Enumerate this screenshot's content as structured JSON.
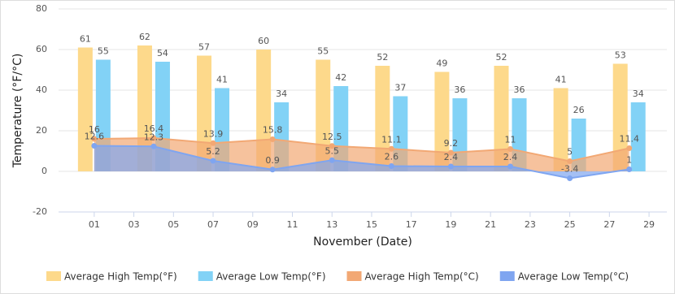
{
  "chart_data": {
    "type": "bar",
    "x_label": "November (Date)",
    "y_label": "Temperature (°F/°C)",
    "xlim": [
      -0.8,
      29.9
    ],
    "xticks": [
      {
        "value": 1,
        "label": "01"
      },
      {
        "value": 3,
        "label": "03"
      },
      {
        "value": 5,
        "label": "05"
      },
      {
        "value": 7,
        "label": "07"
      },
      {
        "value": 9,
        "label": "09"
      },
      11,
      13,
      15,
      17,
      19,
      21,
      23,
      25,
      27,
      29
    ],
    "ylim": [
      -20,
      80
    ],
    "yticks": [
      -20,
      0,
      20,
      40,
      60,
      80
    ],
    "grid": true,
    "legend": "bottom",
    "x": [
      1,
      4,
      7,
      10,
      13,
      16,
      19,
      22,
      25,
      28
    ],
    "series": [
      {
        "name": "Average High Temp(°F)",
        "type": "bar",
        "color": "#fdd98b",
        "values": [
          61,
          62,
          57,
          60,
          55,
          52,
          49,
          52,
          41,
          53
        ]
      },
      {
        "name": "Average Low Temp(°F)",
        "type": "bar",
        "color": "#82d2f6",
        "values": [
          55,
          54,
          41,
          34,
          42,
          37,
          36,
          36,
          26,
          34
        ]
      },
      {
        "name": "Average High Temp(°C)",
        "type": "area",
        "color": "#f2a874",
        "values": [
          16,
          16.4,
          13.9,
          15.8,
          12.5,
          11.1,
          9.2,
          11,
          5,
          11.4
        ]
      },
      {
        "name": "Average Low Temp(°C)",
        "type": "area",
        "color": "#7fa5f0",
        "values": [
          12.6,
          12.3,
          5.2,
          0.9,
          5.5,
          2.6,
          2.4,
          2.4,
          -3.4,
          1
        ]
      }
    ]
  }
}
